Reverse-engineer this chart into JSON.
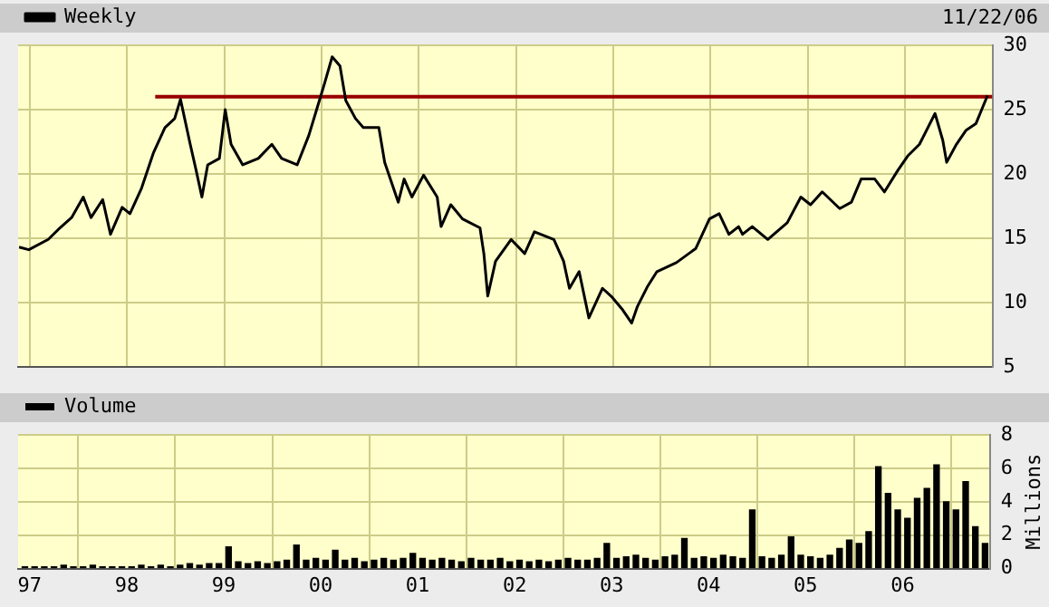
{
  "chart_data": [
    {
      "type": "line",
      "legend": "top left",
      "marker": "none",
      "line_style": "solid",
      "grid": true,
      "tick_labels": "y",
      "annotations": [
        "11/22/06"
      ],
      "xlim": [
        1996.88,
        2006.9
      ],
      "xticks": [
        {
          "value": 1997,
          "label": null
        },
        {
          "value": 1998,
          "label": null
        },
        {
          "value": 1999,
          "label": null
        },
        {
          "value": 2000,
          "label": null
        },
        {
          "value": 2001,
          "label": null
        },
        {
          "value": 2002,
          "label": null
        },
        {
          "value": 2003,
          "label": null
        },
        {
          "value": 2004,
          "label": null
        },
        {
          "value": 2005,
          "label": null
        },
        {
          "value": 2006,
          "label": null
        }
      ],
      "ylim": [
        5,
        30
      ],
      "yticks": [
        5,
        10,
        15,
        20,
        25,
        30
      ],
      "series": [
        {
          "name": "Weekly",
          "color": "#000000",
          "x": [
            1996.89,
            1996.99,
            1997.19,
            1997.31,
            1997.43,
            1997.55,
            1997.63,
            1997.75,
            1997.83,
            1997.95,
            1998.03,
            1998.15,
            1998.27,
            1998.39,
            1998.49,
            1998.55,
            1998.65,
            1998.71,
            1998.77,
            1998.83,
            1998.95,
            1999.01,
            1999.07,
            1999.19,
            1999.35,
            1999.49,
            1999.59,
            1999.75,
            1999.87,
            1999.95,
            2000.03,
            2000.11,
            2000.19,
            2000.25,
            2000.35,
            2000.43,
            2000.59,
            2000.65,
            2000.79,
            2000.85,
            2000.93,
            2001.05,
            2001.19,
            2001.23,
            2001.33,
            2001.45,
            2001.63,
            2001.67,
            2001.71,
            2001.79,
            2001.95,
            2002.09,
            2002.19,
            2002.39,
            2002.49,
            2002.55,
            2002.65,
            2002.75,
            2002.89,
            2002.99,
            2003.09,
            2003.19,
            2003.25,
            2003.35,
            2003.45,
            2003.65,
            2003.85,
            2003.99,
            2004.09,
            2004.19,
            2004.29,
            2004.33,
            2004.43,
            2004.59,
            2004.79,
            2004.93,
            2005.03,
            2005.15,
            2005.33,
            2005.45,
            2005.55,
            2005.69,
            2005.79,
            2005.93,
            2006.03,
            2006.15,
            2006.31,
            2006.39,
            2006.43,
            2006.53,
            2006.63,
            2006.73,
            2006.79,
            2006.85
          ],
          "values": [
            14.3,
            14.1,
            14.9,
            15.8,
            16.6,
            18.2,
            16.6,
            18.0,
            15.3,
            17.4,
            16.9,
            18.9,
            21.6,
            23.6,
            24.3,
            25.8,
            22.3,
            20.3,
            18.2,
            20.7,
            21.2,
            25.0,
            22.3,
            20.7,
            21.2,
            22.3,
            21.2,
            20.7,
            23.0,
            25.0,
            27.0,
            29.1,
            28.4,
            25.7,
            24.3,
            23.6,
            23.6,
            20.9,
            17.8,
            19.6,
            18.2,
            19.9,
            18.2,
            15.9,
            17.6,
            16.5,
            15.8,
            13.8,
            10.5,
            13.2,
            14.9,
            13.8,
            15.5,
            14.9,
            13.2,
            11.1,
            12.4,
            8.8,
            11.1,
            10.4,
            9.5,
            8.4,
            9.7,
            11.2,
            12.4,
            13.1,
            14.2,
            16.5,
            16.9,
            15.3,
            15.9,
            15.3,
            15.9,
            14.9,
            16.2,
            18.2,
            17.6,
            18.6,
            17.3,
            17.8,
            19.6,
            19.6,
            18.6,
            20.3,
            21.4,
            22.3,
            24.7,
            22.6,
            20.9,
            22.3,
            23.4,
            23.9,
            25.0,
            26.1
          ]
        },
        {
          "color": "#990000",
          "x": [
            1998.29,
            2006.9
          ],
          "values": [
            26.0,
            26.0
          ]
        }
      ]
    },
    {
      "type": "bar",
      "legend": "top left",
      "grid": true,
      "ylabel": "Millions",
      "xlim": [
        1996.88,
        2006.9
      ],
      "xticks": [
        {
          "value": 1997,
          "label": "97"
        },
        {
          "value": 1998,
          "label": "98"
        },
        {
          "value": 1999,
          "label": "99"
        },
        {
          "value": 2000,
          "label": "00"
        },
        {
          "value": 2001,
          "label": "01"
        },
        {
          "value": 2002,
          "label": "02"
        },
        {
          "value": 2003,
          "label": "03"
        },
        {
          "value": 2004,
          "label": "04"
        },
        {
          "value": 2005,
          "label": "05"
        },
        {
          "value": 2006,
          "label": "06"
        }
      ],
      "ylim": [
        0,
        8
      ],
      "yticks": [
        0,
        2,
        4,
        6,
        8
      ],
      "x": [
        1996.95,
        1997.05,
        1997.15,
        1997.25,
        1997.35,
        1997.45,
        1997.55,
        1997.65,
        1997.75,
        1997.85,
        1997.95,
        1998.05,
        1998.15,
        1998.25,
        1998.35,
        1998.45,
        1998.55,
        1998.65,
        1998.75,
        1998.85,
        1998.95,
        1999.05,
        1999.15,
        1999.25,
        1999.35,
        1999.45,
        1999.55,
        1999.65,
        1999.75,
        1999.85,
        1999.95,
        2000.05,
        2000.15,
        2000.25,
        2000.35,
        2000.45,
        2000.55,
        2000.65,
        2000.75,
        2000.85,
        2000.95,
        2001.05,
        2001.15,
        2001.25,
        2001.35,
        2001.45,
        2001.55,
        2001.65,
        2001.75,
        2001.85,
        2001.95,
        2002.05,
        2002.15,
        2002.25,
        2002.35,
        2002.45,
        2002.55,
        2002.65,
        2002.75,
        2002.85,
        2002.95,
        2003.05,
        2003.15,
        2003.25,
        2003.35,
        2003.45,
        2003.55,
        2003.65,
        2003.75,
        2003.85,
        2003.95,
        2004.05,
        2004.15,
        2004.25,
        2004.35,
        2004.45,
        2004.55,
        2004.65,
        2004.75,
        2004.85,
        2004.95,
        2005.05,
        2005.15,
        2005.25,
        2005.35,
        2005.45,
        2005.55,
        2005.65,
        2005.75,
        2005.85,
        2005.95,
        2006.05,
        2006.15,
        2006.25,
        2006.35,
        2006.45,
        2006.55,
        2006.65,
        2006.75,
        2006.85
      ],
      "series": [
        {
          "name": "Volume",
          "color": "#000000",
          "values": [
            0.1,
            0.1,
            0.1,
            0.1,
            0.2,
            0.1,
            0.1,
            0.2,
            0.1,
            0.1,
            0.1,
            0.1,
            0.2,
            0.1,
            0.2,
            0.1,
            0.2,
            0.3,
            0.2,
            0.3,
            0.3,
            1.3,
            0.4,
            0.3,
            0.4,
            0.3,
            0.4,
            0.5,
            1.4,
            0.5,
            0.6,
            0.5,
            1.1,
            0.5,
            0.6,
            0.4,
            0.5,
            0.6,
            0.5,
            0.6,
            0.9,
            0.6,
            0.5,
            0.6,
            0.5,
            0.4,
            0.6,
            0.5,
            0.5,
            0.6,
            0.4,
            0.5,
            0.4,
            0.5,
            0.4,
            0.5,
            0.6,
            0.5,
            0.5,
            0.6,
            1.5,
            0.6,
            0.7,
            0.8,
            0.6,
            0.5,
            0.7,
            0.8,
            1.8,
            0.6,
            0.7,
            0.6,
            0.8,
            0.7,
            0.6,
            3.5,
            0.7,
            0.6,
            0.8,
            1.9,
            0.8,
            0.7,
            0.6,
            0.8,
            1.2,
            1.7,
            1.5,
            2.2,
            6.1,
            4.5,
            3.5,
            3.0,
            4.2,
            4.8,
            6.2,
            4.0,
            3.5,
            5.2,
            2.5,
            1.5
          ]
        }
      ]
    }
  ]
}
